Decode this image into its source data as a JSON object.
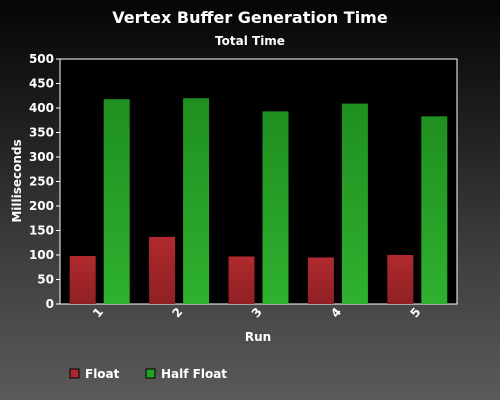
{
  "chart_data": {
    "type": "bar",
    "title": "Vertex Buffer Generation Time",
    "subtitle": "Total Time",
    "xlabel": "Run",
    "ylabel": "Milliseconds",
    "categories": [
      "1",
      "2",
      "3",
      "4",
      "5"
    ],
    "series": [
      {
        "name": "Float",
        "color": "#a8282b",
        "values": [
          98,
          137,
          97,
          95,
          100
        ]
      },
      {
        "name": "Half Float",
        "color": "#22a023",
        "values": [
          418,
          420,
          393,
          409,
          383
        ]
      }
    ],
    "ylim": [
      0,
      500
    ],
    "yticks": [
      0,
      50,
      100,
      150,
      200,
      250,
      300,
      350,
      400,
      450,
      500
    ],
    "grid": false,
    "legend_position": "bottom-left",
    "plot_background": "#000000"
  }
}
